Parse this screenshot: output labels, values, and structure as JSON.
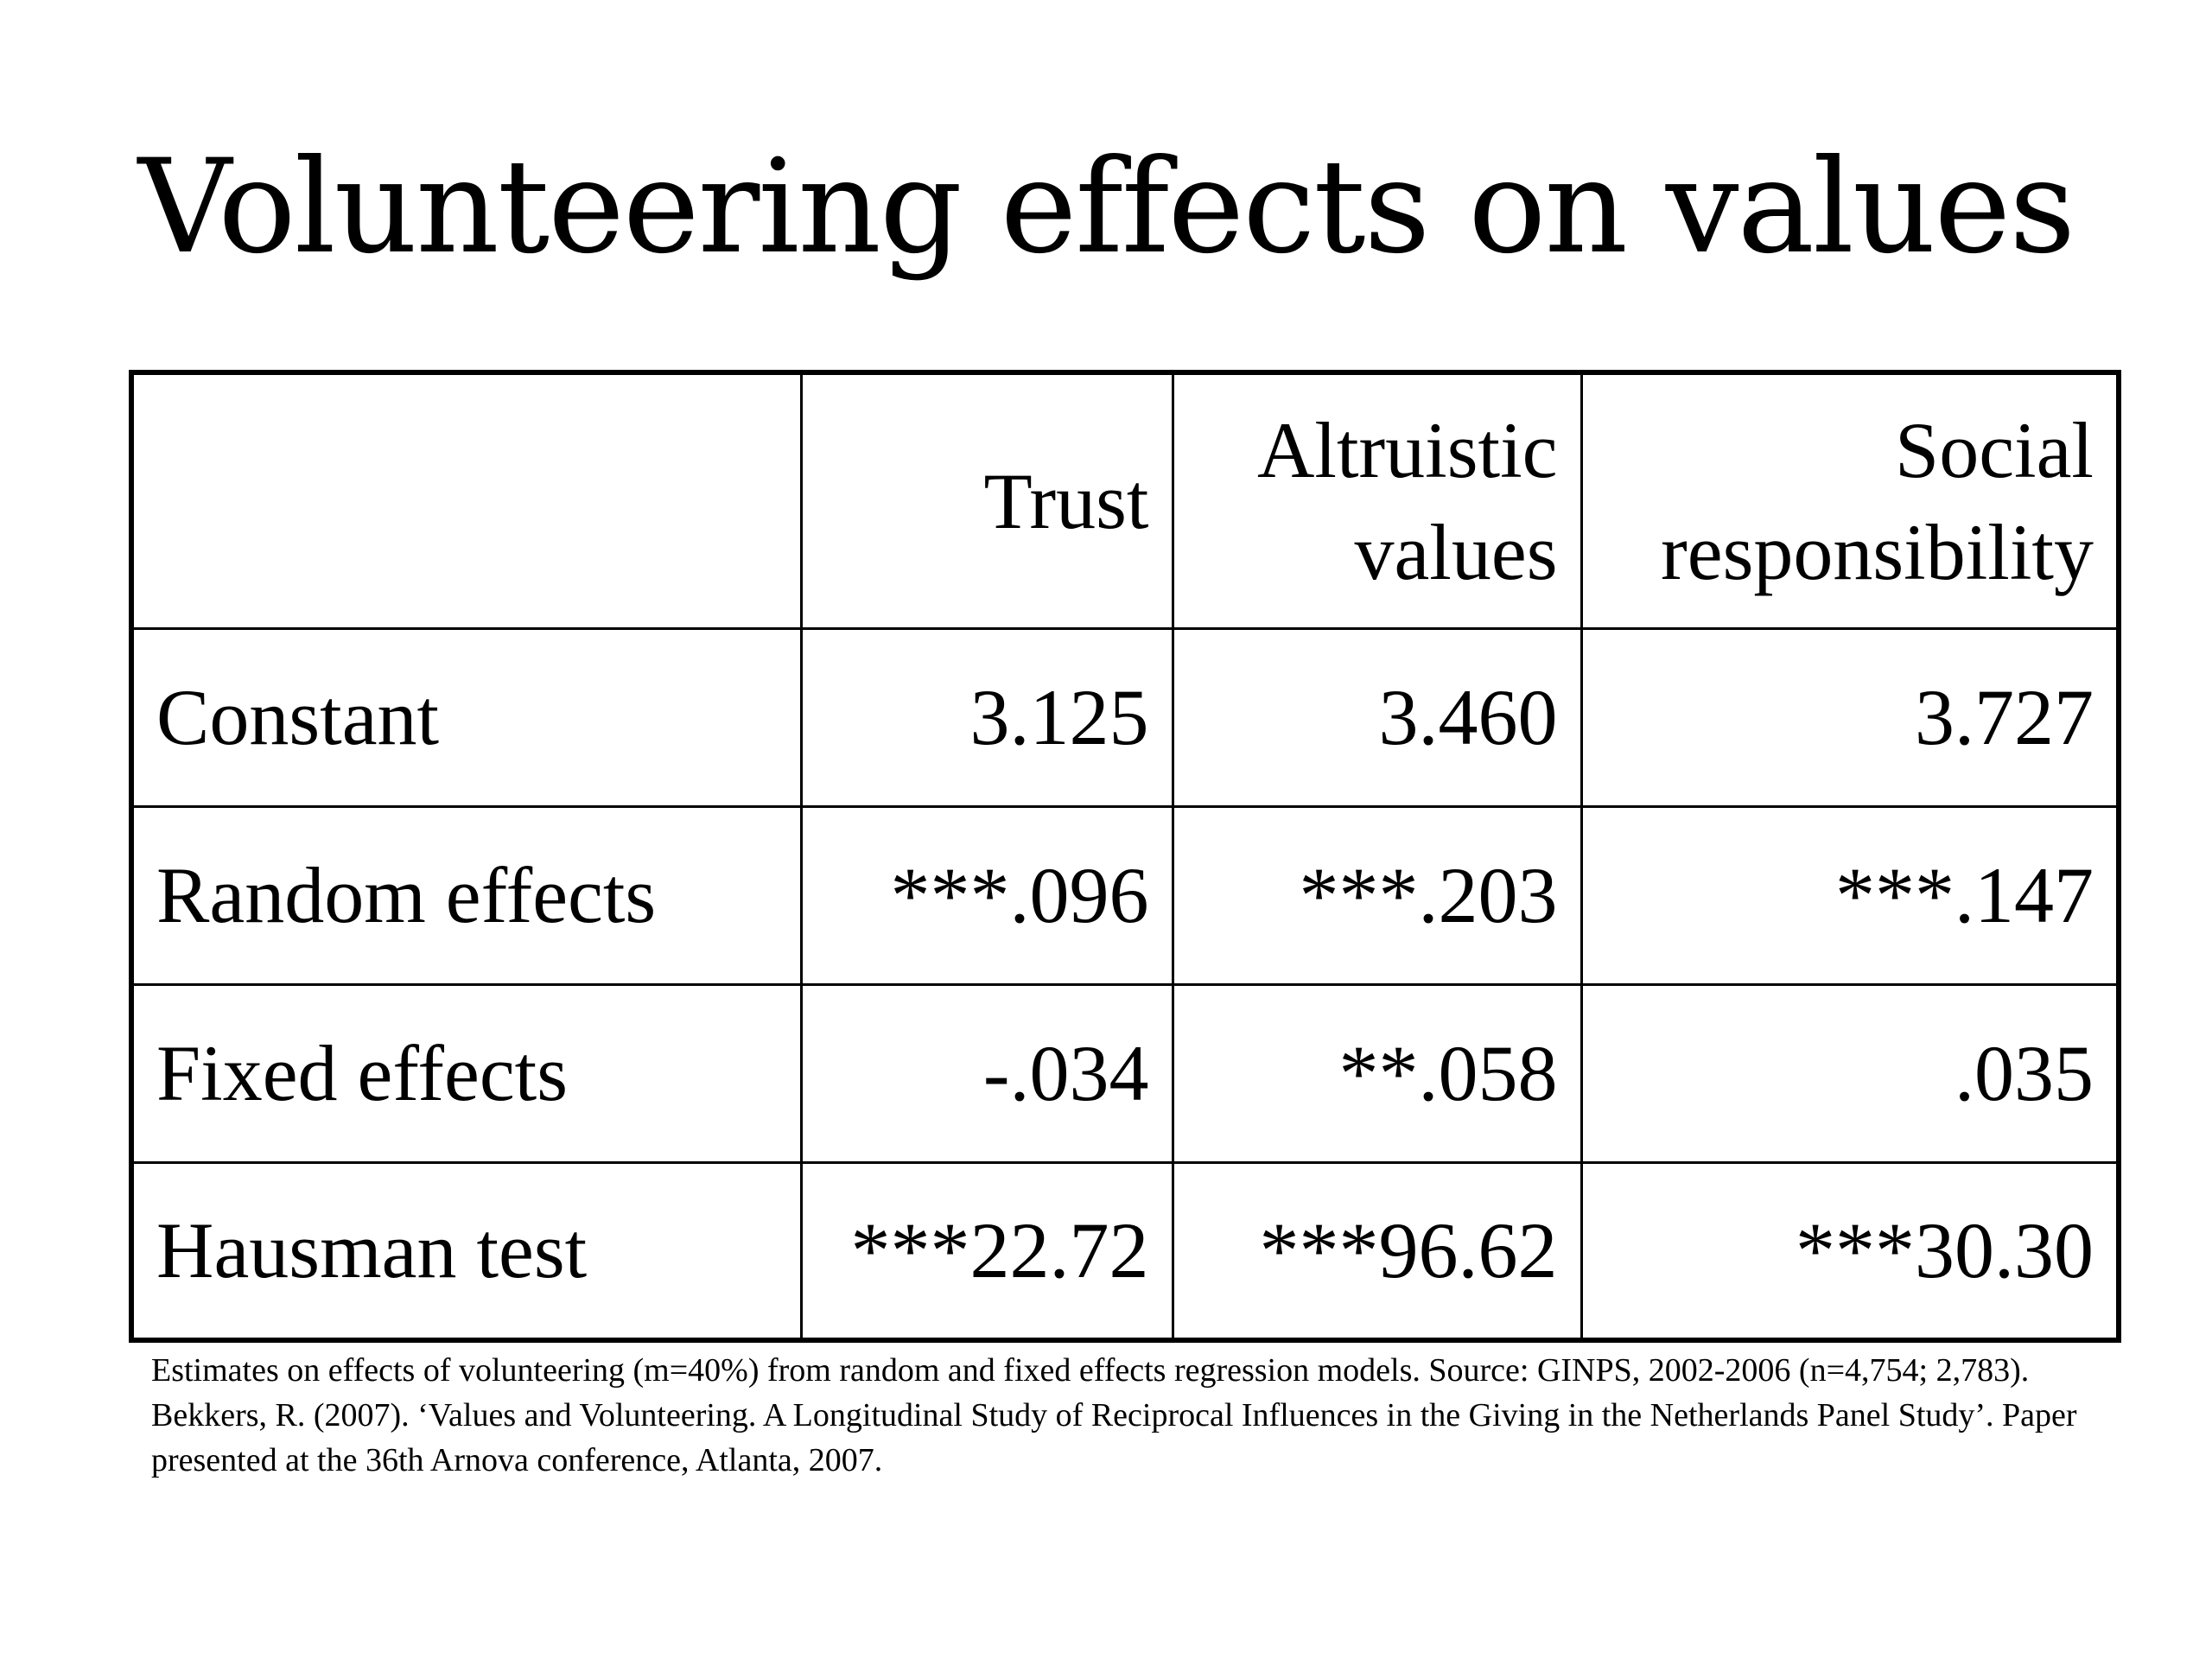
{
  "slide": {
    "title": "Volunteering effects on values"
  },
  "table": {
    "columns": [
      "",
      "Trust",
      "Altruistic values",
      "Social responsibility"
    ],
    "rows": [
      {
        "label": "Constant",
        "values": [
          "3.125",
          "3.460",
          "3.727"
        ]
      },
      {
        "label": "Random effects",
        "values": [
          "***.096",
          "***.203",
          "***.147"
        ]
      },
      {
        "label": "Fixed effects",
        "values": [
          "-.034",
          "**.058",
          ".035"
        ]
      },
      {
        "label": "Hausman test",
        "values": [
          "***22.72",
          "***96.62",
          "***30.30"
        ]
      }
    ]
  },
  "footnote": "Estimates on effects of volunteering (m=40%) from random and fixed effects regression models. Source: GINPS, 2002-2006 (n=4,754; 2,783). Bekkers, R. (2007). ‘Values and Volunteering. A Longitudinal Study of Reciprocal Influences in the Giving in the Netherlands Panel Study’. Paper presented at the 36th Arnova conference, Atlanta, 2007."
}
